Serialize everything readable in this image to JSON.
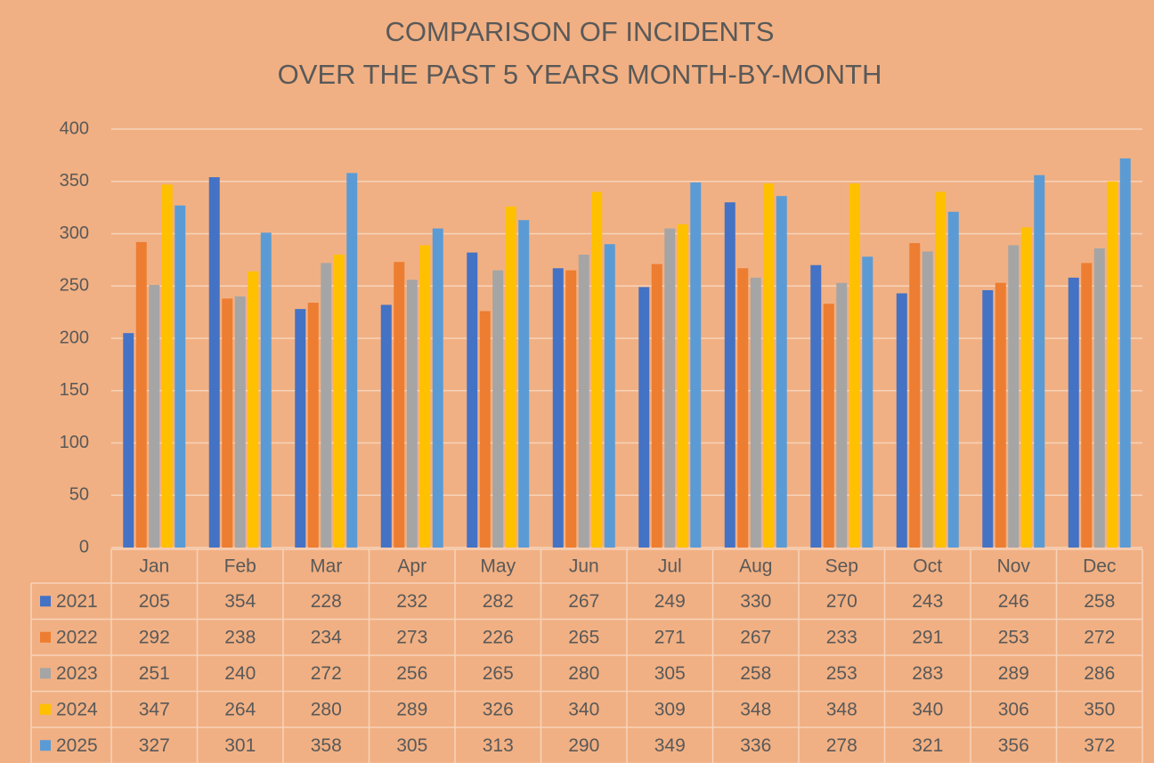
{
  "chart_data": {
    "type": "bar",
    "title": [
      "COMPARISON OF INCIDENTS",
      "OVER THE PAST 5 YEARS MONTH-BY-MONTH"
    ],
    "categories": [
      "Jan",
      "Feb",
      "Mar",
      "Apr",
      "May",
      "Jun",
      "Jul",
      "Aug",
      "Sep",
      "Oct",
      "Nov",
      "Dec"
    ],
    "series": [
      {
        "name": "2021",
        "color": "#4472c4",
        "values": [
          205,
          354,
          228,
          232,
          282,
          267,
          249,
          330,
          270,
          243,
          246,
          258
        ]
      },
      {
        "name": "2022",
        "color": "#ed7d31",
        "values": [
          292,
          238,
          234,
          273,
          226,
          265,
          271,
          267,
          233,
          291,
          253,
          272
        ]
      },
      {
        "name": "2023",
        "color": "#a5a5a5",
        "values": [
          251,
          240,
          272,
          256,
          265,
          280,
          305,
          258,
          253,
          283,
          289,
          286
        ]
      },
      {
        "name": "2024",
        "color": "#ffc000",
        "values": [
          347,
          264,
          280,
          289,
          326,
          340,
          309,
          348,
          348,
          340,
          306,
          350
        ]
      },
      {
        "name": "2025",
        "color": "#5b9bd5",
        "values": [
          327,
          301,
          358,
          305,
          313,
          290,
          349,
          336,
          278,
          321,
          356,
          372
        ]
      }
    ],
    "ylim": [
      0,
      400
    ],
    "yticks": [
      0,
      50,
      100,
      150,
      200,
      250,
      300,
      350,
      400
    ],
    "grid": true
  }
}
